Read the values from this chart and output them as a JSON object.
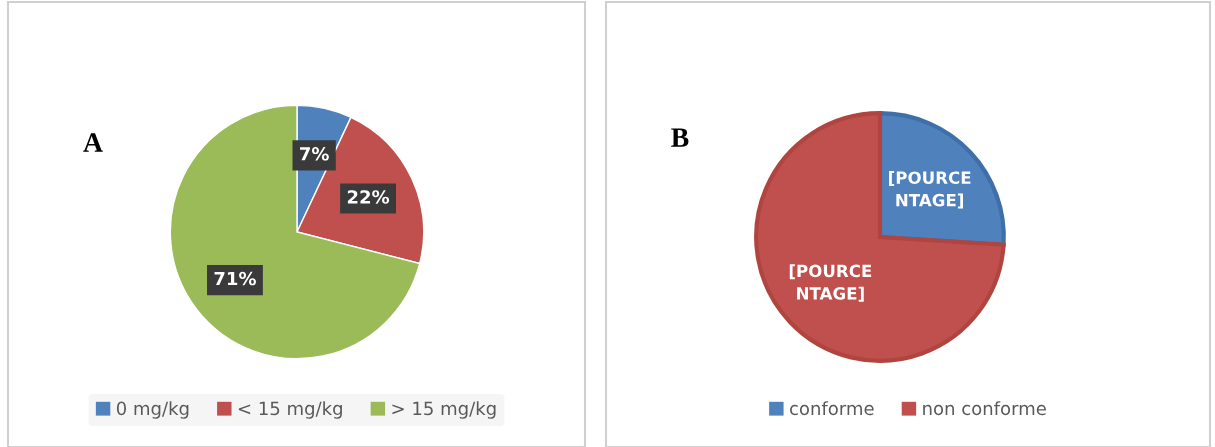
{
  "chart_data": [
    {
      "type": "pie",
      "annotations": [
        "A"
      ],
      "categories": [
        "0 mg/kg",
        "< 15 mg/kg",
        "> 15 mg/kg"
      ],
      "values": [
        7,
        22,
        71
      ],
      "colors": [
        "#4f81bd",
        "#c0504d",
        "#9bbb59"
      ],
      "value_labels": [
        "7%",
        "22%",
        "71%"
      ],
      "legend": "bottom"
    },
    {
      "type": "pie",
      "annotations": [
        "B"
      ],
      "categories": [
        "conforme",
        "non conforme"
      ],
      "values": [
        26,
        74
      ],
      "colors": [
        "#4f81bd",
        "#c0504d"
      ],
      "value_labels": [
        "[POURCE\nNTAGE]",
        "[POURCE\nNTAGE]"
      ],
      "legend": "bottom"
    }
  ]
}
